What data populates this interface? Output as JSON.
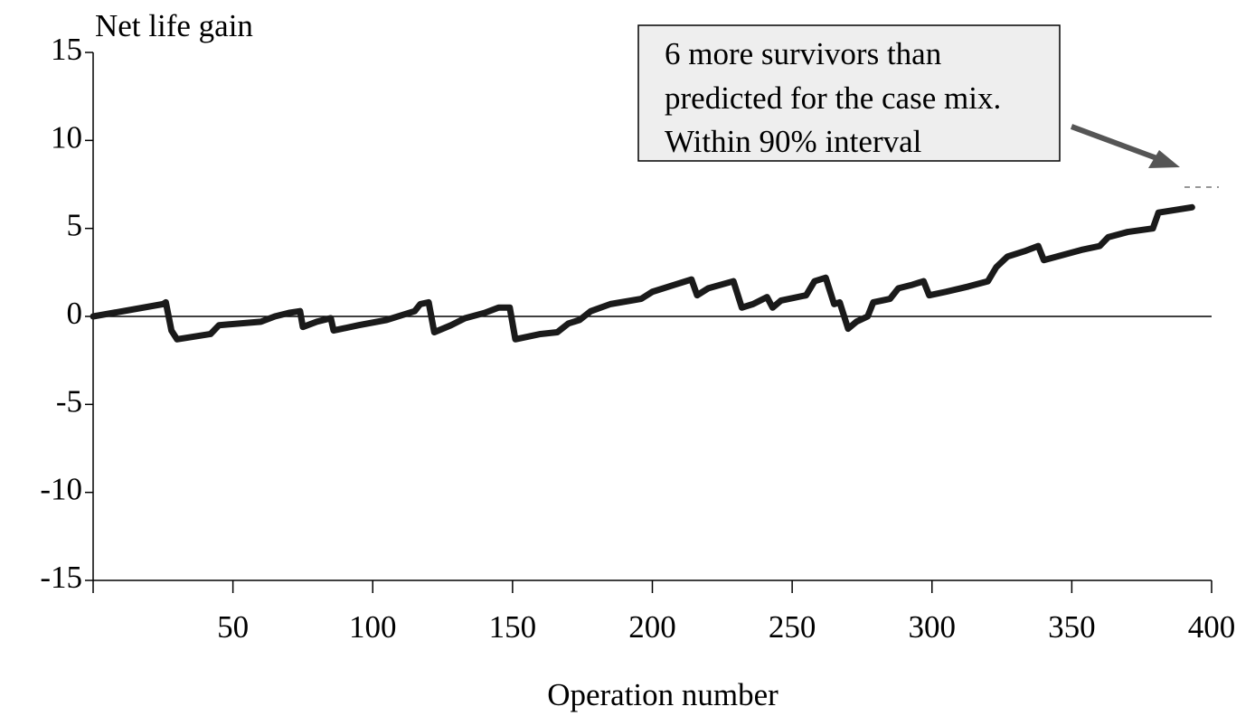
{
  "chart_data": {
    "type": "line",
    "y_label": "Net life gain",
    "x_label": "Operation number",
    "annotation": [
      "6 more survivors than",
      "predicted for the case mix.",
      "Within 90% interval"
    ],
    "xlim": [
      0,
      400
    ],
    "xticks": [
      50,
      100,
      150,
      200,
      250,
      300,
      350,
      400
    ],
    "ylim": [
      -15,
      15
    ],
    "yticks": [
      -15,
      -10,
      -5,
      0,
      5,
      10,
      15
    ],
    "series": [
      {
        "color": "#1a1a1a",
        "x": [
          0,
          25,
          26,
          28,
          30,
          42,
          45,
          60,
          65,
          70,
          74,
          75,
          80,
          85,
          86,
          95,
          105,
          115,
          117,
          120,
          122,
          128,
          133,
          140,
          145,
          149,
          151,
          160,
          166,
          170,
          174,
          178,
          185,
          196,
          200,
          208,
          214,
          216,
          220,
          229,
          232,
          236,
          241,
          243,
          246,
          255,
          258,
          262,
          265,
          267,
          270,
          273,
          277,
          279,
          285,
          288,
          293,
          297,
          299,
          305,
          313,
          320,
          323,
          327,
          333,
          338,
          340,
          347,
          354,
          360,
          363,
          370,
          379,
          381,
          393
        ],
        "values": [
          0,
          0.7,
          0.8,
          -0.8,
          -1.3,
          -1,
          -0.5,
          -0.3,
          0,
          0.2,
          0.3,
          -0.6,
          -0.3,
          -0.1,
          -0.8,
          -0.5,
          -0.2,
          0.3,
          0.7,
          0.8,
          -0.9,
          -0.5,
          -0.1,
          0.2,
          0.5,
          0.5,
          -1.3,
          -1,
          -0.9,
          -0.4,
          -0.2,
          0.3,
          0.7,
          1,
          1.4,
          1.8,
          2.1,
          1.2,
          1.6,
          2,
          0.5,
          0.7,
          1.1,
          0.5,
          0.9,
          1.2,
          2,
          2.2,
          0.7,
          0.8,
          -0.7,
          -0.3,
          0,
          0.8,
          1,
          1.6,
          1.8,
          2,
          1.2,
          1.4,
          1.7,
          2,
          2.8,
          3.4,
          3.7,
          4,
          3.2,
          3.5,
          3.8,
          4,
          4.5,
          4.8,
          5,
          5.9,
          6.2
        ]
      }
    ]
  }
}
